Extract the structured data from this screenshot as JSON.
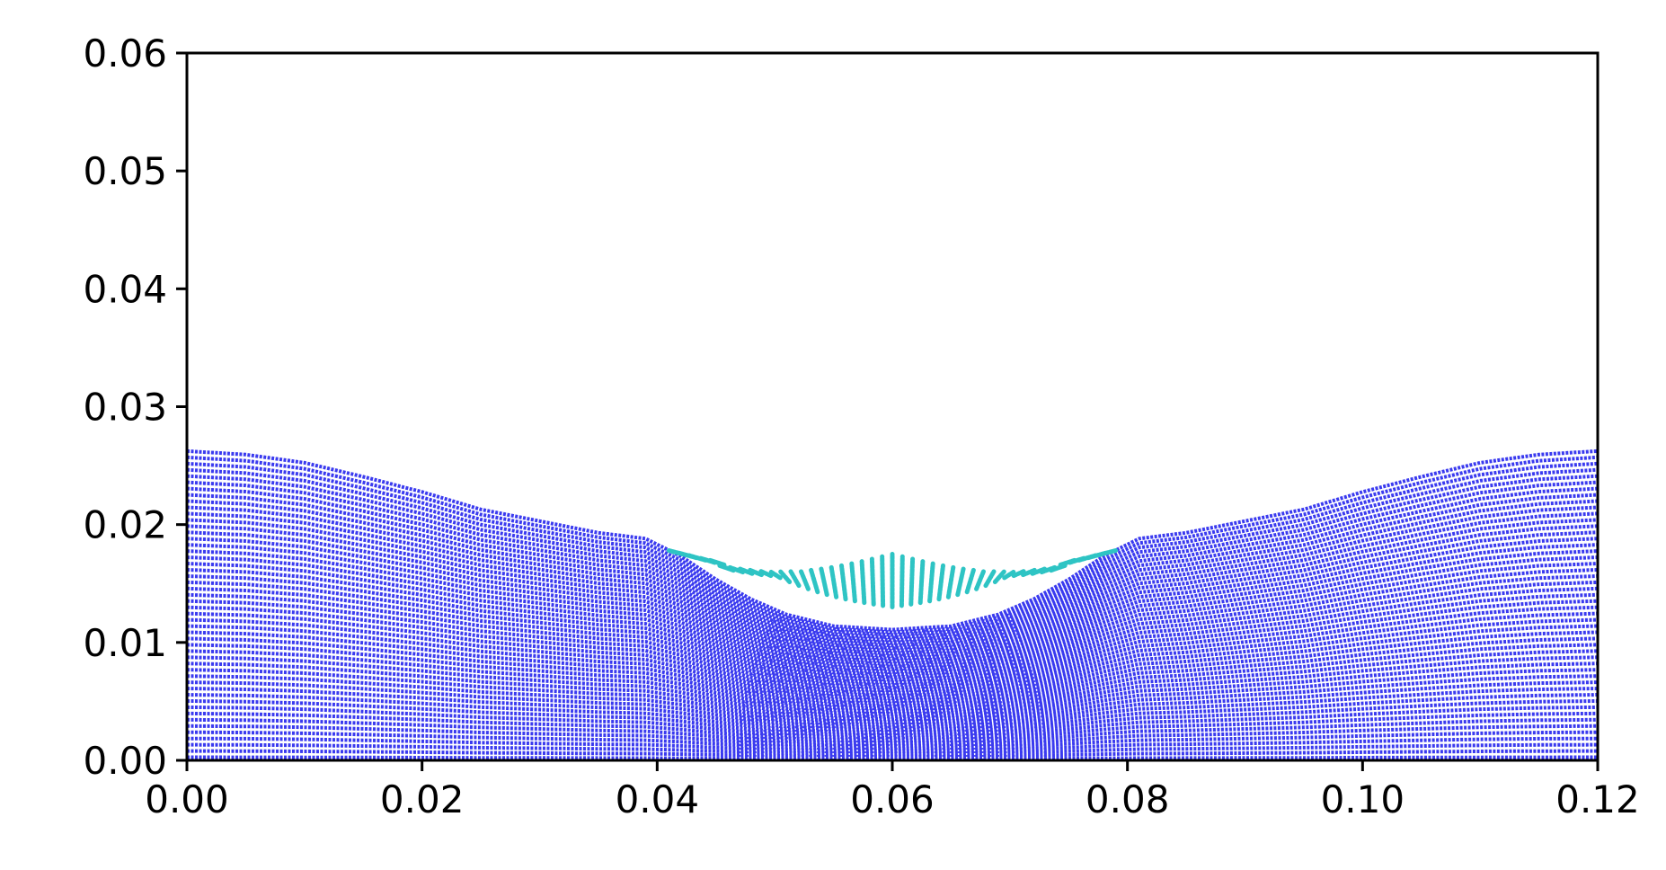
{
  "chart_data": {
    "type": "scatter",
    "title": "",
    "xlabel": "",
    "ylabel": "",
    "xlim": [
      0.0,
      0.12
    ],
    "ylim": [
      0.0,
      0.06
    ],
    "x_ticks": [
      "0.00",
      "0.02",
      "0.04",
      "0.06",
      "0.08",
      "0.10",
      "0.12"
    ],
    "y_ticks": [
      "0.00",
      "0.01",
      "0.02",
      "0.03",
      "0.04",
      "0.05",
      "0.06"
    ],
    "grid": false,
    "legend": "none",
    "series": [
      {
        "color": "#3a3aef",
        "marker": "small open circle",
        "description_points": "granular bed particles arranged in horizontal layers; surface profile with central crater",
        "surface_profile": {
          "x": [
            0.0,
            0.005,
            0.01,
            0.015,
            0.02,
            0.025,
            0.03,
            0.035,
            0.039,
            0.042,
            0.045,
            0.048,
            0.051,
            0.055,
            0.06,
            0.065,
            0.069,
            0.072,
            0.075,
            0.078,
            0.081,
            0.085,
            0.09,
            0.095,
            0.1,
            0.105,
            0.11,
            0.115,
            0.12
          ],
          "y": [
            0.0265,
            0.0262,
            0.0255,
            0.0243,
            0.023,
            0.0215,
            0.0205,
            0.0195,
            0.019,
            0.0175,
            0.0155,
            0.0138,
            0.0125,
            0.0115,
            0.0112,
            0.0115,
            0.0125,
            0.0138,
            0.0155,
            0.0175,
            0.019,
            0.0195,
            0.0205,
            0.0215,
            0.023,
            0.0243,
            0.0255,
            0.0262,
            0.0265
          ]
        },
        "layer_count": 50
      },
      {
        "color": "#2ec4c4",
        "marker": "small open circle",
        "description_points": "ejected particles above crater",
        "x_range": [
          0.041,
          0.079
        ],
        "y_range": [
          0.0128,
          0.0178
        ]
      }
    ]
  }
}
